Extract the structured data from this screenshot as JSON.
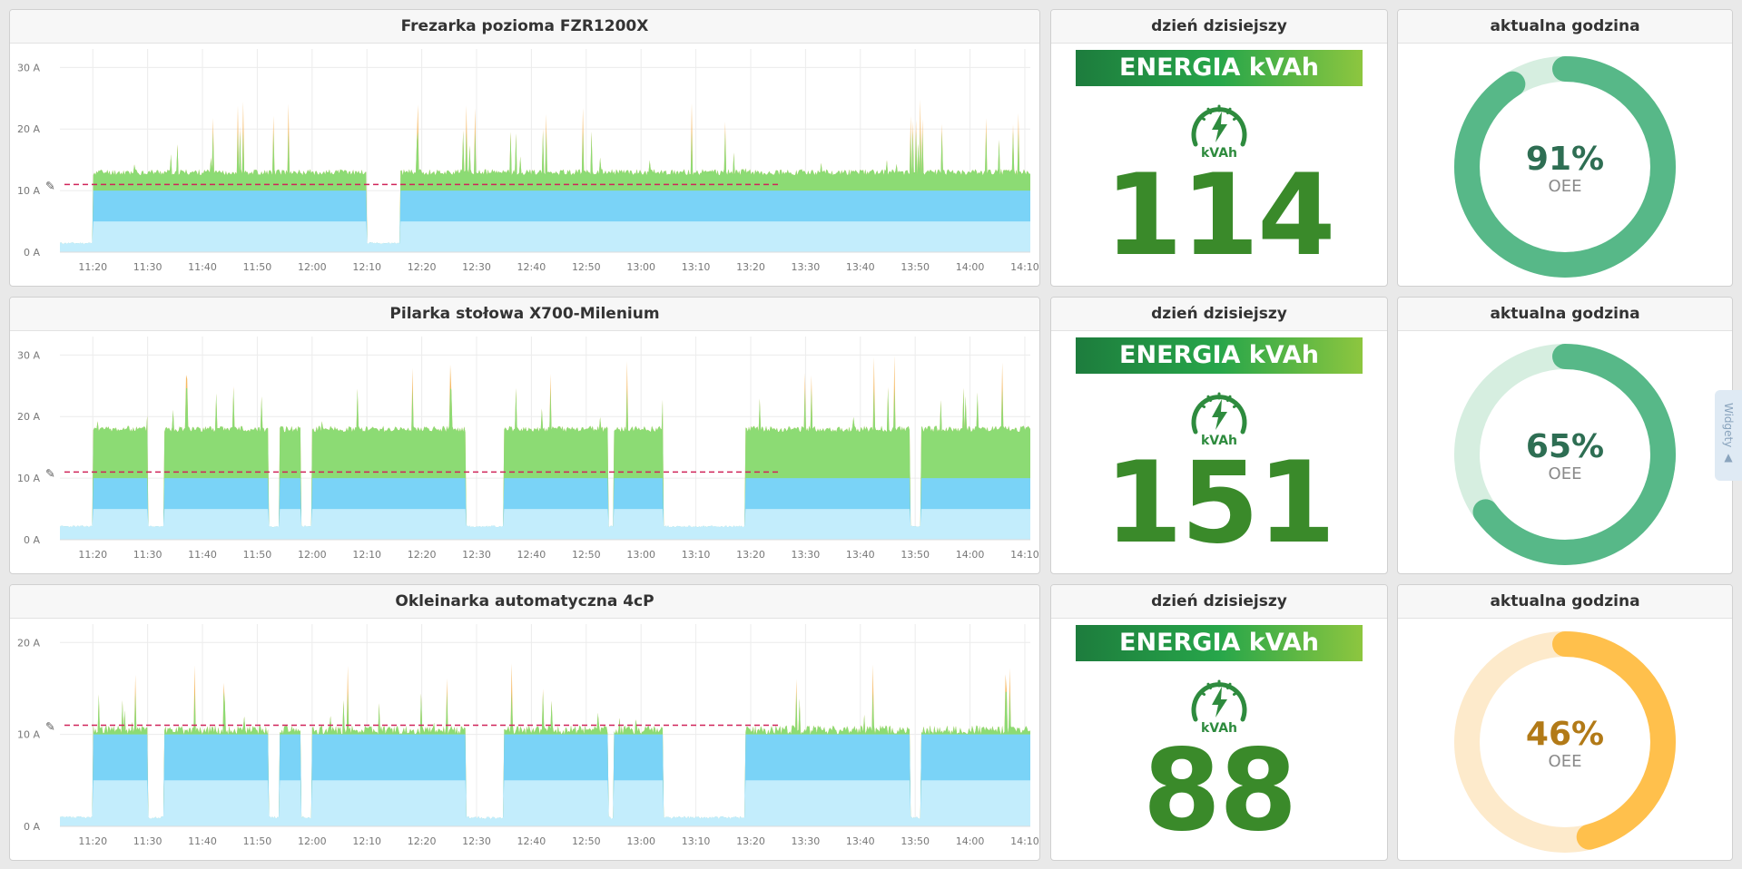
{
  "rows": [
    {
      "chart": {
        "title": "Frezarka pozioma FZR1200X",
        "y_ticks": [
          "0 A",
          "10 A",
          "20 A",
          "30 A"
        ],
        "x_ticks": [
          "11:20",
          "11:30",
          "11:40",
          "11:50",
          "12:00",
          "12:10",
          "12:20",
          "12:30",
          "12:40",
          "12:50",
          "13:00",
          "13:10",
          "13:20",
          "13:30",
          "13:40",
          "13:50",
          "14:00",
          "14:10"
        ],
        "chart_data": {
          "type": "area",
          "ylim": [
            0,
            33
          ],
          "x_range": [
            "11:14",
            "14:11"
          ],
          "threshold": 11,
          "layers": [
            {
              "name": "idle",
              "value": 1.3
            },
            {
              "name": "base",
              "value": 5
            },
            {
              "name": "load",
              "value": 10
            },
            {
              "name": "peak",
              "value": 13
            }
          ],
          "off_segments": [
            [
              "12:10",
              "12:16"
            ]
          ],
          "spike_max": 25,
          "seed": 11
        }
      },
      "energy": {
        "header": "dzień dzisiejszy",
        "banner": "ENERGIA kVAh",
        "unit": "kVAh",
        "value": "114"
      },
      "gauge": {
        "header": "aktualna godzina",
        "value": 91,
        "label": "91%",
        "sub": "OEE",
        "color": "#57b888",
        "track": "#d6eee0",
        "text_color": "#2e6e53"
      }
    },
    {
      "chart": {
        "title": "Pilarka stołowa X700-Milenium",
        "y_ticks": [
          "0 A",
          "10 A",
          "20 A",
          "30 A"
        ],
        "x_ticks": [
          "11:20",
          "11:30",
          "11:40",
          "11:50",
          "12:00",
          "12:10",
          "12:20",
          "12:30",
          "12:40",
          "12:50",
          "13:00",
          "13:10",
          "13:20",
          "13:30",
          "13:40",
          "13:50",
          "14:00",
          "14:10"
        ],
        "chart_data": {
          "type": "area",
          "ylim": [
            0,
            33
          ],
          "x_range": [
            "11:14",
            "14:11"
          ],
          "threshold": 11,
          "layers": [
            {
              "name": "idle",
              "value": 2
            },
            {
              "name": "base",
              "value": 5
            },
            {
              "name": "load",
              "value": 10
            },
            {
              "name": "peak",
              "value": 18
            }
          ],
          "off_segments": [
            [
              "11:30",
              "11:33"
            ],
            [
              "11:52",
              "11:54"
            ],
            [
              "11:58",
              "12:00"
            ],
            [
              "12:28",
              "12:35"
            ],
            [
              "12:54",
              "12:55"
            ],
            [
              "13:04",
              "13:19"
            ],
            [
              "13:49",
              "13:51"
            ]
          ],
          "spike_max": 30,
          "seed": 23
        }
      },
      "energy": {
        "header": "dzień dzisiejszy",
        "banner": "ENERGIA kVAh",
        "unit": "kVAh",
        "value": "151"
      },
      "gauge": {
        "header": "aktualna godzina",
        "value": 65,
        "label": "65%",
        "sub": "OEE",
        "color": "#57b888",
        "track": "#d6eee0",
        "text_color": "#2e6e53"
      }
    },
    {
      "chart": {
        "title": "Okleinarka automatyczna 4cP",
        "y_ticks": [
          "0 A",
          "10 A",
          "20 A"
        ],
        "x_ticks": [
          "11:20",
          "11:30",
          "11:40",
          "11:50",
          "12:00",
          "12:10",
          "12:20",
          "12:30",
          "12:40",
          "12:50",
          "13:00",
          "13:10",
          "13:20",
          "13:30",
          "13:40",
          "13:50",
          "14:00",
          "14:10"
        ],
        "chart_data": {
          "type": "area",
          "ylim": [
            0,
            22
          ],
          "x_range": [
            "11:14",
            "14:11"
          ],
          "threshold": 11,
          "layers": [
            {
              "name": "idle",
              "value": 0.8
            },
            {
              "name": "base",
              "value": 5
            },
            {
              "name": "load",
              "value": 10
            },
            {
              "name": "peak",
              "value": 10.5
            }
          ],
          "off_segments": [
            [
              "11:30",
              "11:33"
            ],
            [
              "11:52",
              "11:54"
            ],
            [
              "11:58",
              "12:00"
            ],
            [
              "12:28",
              "12:35"
            ],
            [
              "12:54",
              "12:55"
            ],
            [
              "13:04",
              "13:19"
            ],
            [
              "13:49",
              "13:51"
            ]
          ],
          "spike_max": 18,
          "seed": 37
        }
      },
      "energy": {
        "header": "dzień dzisiejszy",
        "banner": "ENERGIA kVAh",
        "unit": "kVAh",
        "value": "88"
      },
      "gauge": {
        "header": "aktualna godzina",
        "value": 46,
        "label": "46%",
        "sub": "OEE",
        "color": "#ffc04c",
        "track": "#fdeacb",
        "text_color": "#b27a17"
      }
    }
  ],
  "side_tab": {
    "label": "Widgety ▲"
  },
  "colors": {
    "idle": "#c3edfc",
    "base": "#c3edfc",
    "load": "#7ad3f7",
    "peak": "#8cdb74",
    "spike": "#f5b963",
    "threshold": "#d0245a"
  }
}
